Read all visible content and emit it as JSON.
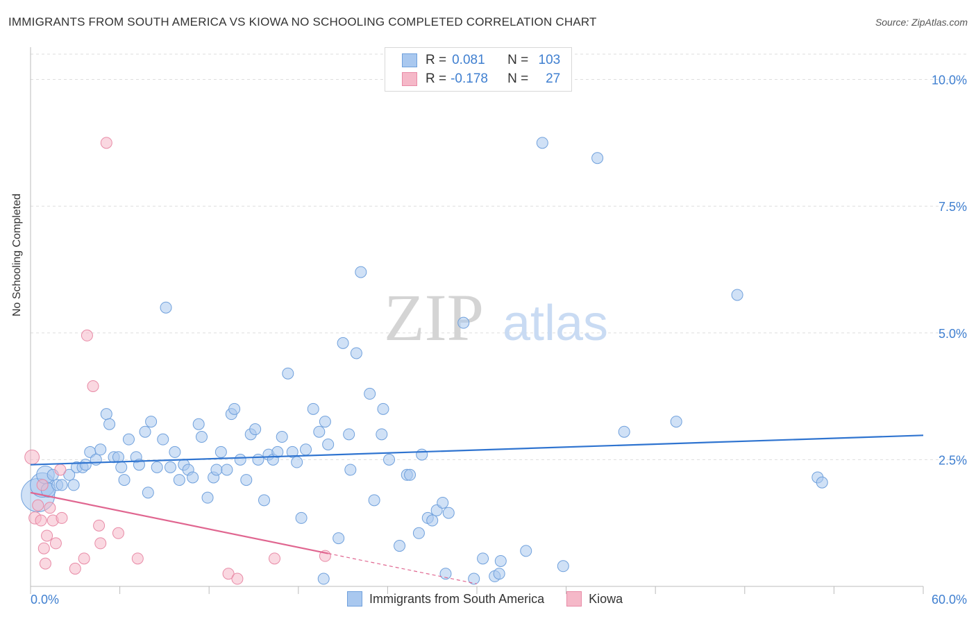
{
  "header": {
    "title": "IMMIGRANTS FROM SOUTH AMERICA VS KIOWA NO SCHOOLING COMPLETED CORRELATION CHART",
    "source": "Source: ZipAtlas.com"
  },
  "watermark": {
    "zip": "ZIP",
    "atlas": "atlas"
  },
  "legend_top": {
    "rows": [
      {
        "r_label": "R =",
        "r_value": "0.081",
        "n_label": "N =",
        "n_value": "103",
        "color": "#a9c8ef"
      },
      {
        "r_label": "R =",
        "r_value": "-0.178",
        "n_label": "N =",
        "n_value": "27",
        "color": "#f5b8c8"
      }
    ]
  },
  "legend_bottom": {
    "items": [
      {
        "label": "Immigrants from South America",
        "color": "#a9c8ef"
      },
      {
        "label": "Kiowa",
        "color": "#f5b8c8"
      }
    ]
  },
  "chart_data": {
    "type": "scatter",
    "title": "IMMIGRANTS FROM SOUTH AMERICA VS KIOWA NO SCHOOLING COMPLETED CORRELATION CHART",
    "xlabel": "",
    "ylabel": "No Schooling Completed",
    "xlim": [
      0,
      60
    ],
    "ylim": [
      0,
      10.5
    ],
    "x_tick_labels": [
      {
        "value": 0,
        "label": "0.0%"
      },
      {
        "value": 60,
        "label": "60.0%"
      }
    ],
    "y_tick_labels": [
      {
        "value": 2.5,
        "label": "2.5%"
      },
      {
        "value": 5.0,
        "label": "5.0%"
      },
      {
        "value": 7.5,
        "label": "7.5%"
      },
      {
        "value": 10.0,
        "label": "10.0%"
      }
    ],
    "grid": "horizontal dashed",
    "series": [
      {
        "name": "Immigrants from South America",
        "color": "#a9c8ef",
        "stroke": "#6fa0dc",
        "trend": {
          "x0": 0,
          "y0": 2.4,
          "x1": 60,
          "y1": 2.98,
          "color": "#2f74d0"
        },
        "points": [
          [
            0.5,
            1.8,
            3
          ],
          [
            0.8,
            2.0,
            2.2
          ],
          [
            1.0,
            2.2,
            1.6
          ],
          [
            1.2,
            1.9,
            1.3
          ],
          [
            1.5,
            2.2,
            1
          ],
          [
            1.8,
            2.0,
            1
          ],
          [
            2.1,
            2.0,
            1
          ],
          [
            2.6,
            2.2,
            1
          ],
          [
            2.9,
            2.0,
            1
          ],
          [
            3.1,
            2.35,
            1
          ],
          [
            3.5,
            2.35,
            1
          ],
          [
            3.7,
            2.4,
            1
          ],
          [
            4.0,
            2.65,
            1
          ],
          [
            4.4,
            2.5,
            1
          ],
          [
            4.7,
            2.7,
            1
          ],
          [
            5.1,
            3.4,
            1
          ],
          [
            5.3,
            3.2,
            1
          ],
          [
            5.6,
            2.55,
            1
          ],
          [
            5.9,
            2.55,
            1
          ],
          [
            6.1,
            2.35,
            1
          ],
          [
            6.3,
            2.1,
            1
          ],
          [
            6.6,
            2.9,
            1
          ],
          [
            7.1,
            2.55,
            1
          ],
          [
            7.3,
            2.4,
            1
          ],
          [
            7.7,
            3.05,
            1
          ],
          [
            7.9,
            1.85,
            1
          ],
          [
            8.1,
            3.25,
            1
          ],
          [
            8.5,
            2.35,
            1
          ],
          [
            8.9,
            2.9,
            1
          ],
          [
            9.1,
            5.5,
            1
          ],
          [
            9.4,
            2.35,
            1
          ],
          [
            9.7,
            2.65,
            1
          ],
          [
            10.0,
            2.1,
            1
          ],
          [
            10.3,
            2.4,
            1
          ],
          [
            10.6,
            2.3,
            1
          ],
          [
            10.9,
            2.15,
            1
          ],
          [
            11.3,
            3.2,
            1
          ],
          [
            11.5,
            2.95,
            1
          ],
          [
            11.9,
            1.75,
            1
          ],
          [
            12.3,
            2.15,
            1
          ],
          [
            12.5,
            2.3,
            1
          ],
          [
            12.8,
            2.65,
            1
          ],
          [
            13.2,
            2.3,
            1
          ],
          [
            13.5,
            3.4,
            1
          ],
          [
            13.7,
            3.5,
            1
          ],
          [
            14.1,
            2.5,
            1
          ],
          [
            14.5,
            2.1,
            1
          ],
          [
            14.8,
            3.0,
            1
          ],
          [
            15.1,
            3.1,
            1
          ],
          [
            15.3,
            2.5,
            1
          ],
          [
            15.7,
            1.7,
            1
          ],
          [
            16.0,
            2.6,
            1
          ],
          [
            16.3,
            2.5,
            1
          ],
          [
            16.6,
            2.65,
            1
          ],
          [
            16.9,
            2.95,
            1
          ],
          [
            17.3,
            4.2,
            1
          ],
          [
            17.6,
            2.65,
            1
          ],
          [
            17.9,
            2.45,
            1
          ],
          [
            18.2,
            1.35,
            1
          ],
          [
            18.5,
            2.7,
            1
          ],
          [
            19.0,
            3.5,
            1
          ],
          [
            19.4,
            3.05,
            1
          ],
          [
            19.8,
            3.25,
            1
          ],
          [
            20.0,
            2.8,
            1
          ],
          [
            19.7,
            0.15,
            1
          ],
          [
            20.7,
            0.95,
            1
          ],
          [
            21.0,
            4.8,
            1
          ],
          [
            21.4,
            3.0,
            1
          ],
          [
            21.5,
            2.3,
            1
          ],
          [
            21.9,
            4.6,
            1
          ],
          [
            22.2,
            6.2,
            1
          ],
          [
            22.8,
            3.8,
            1
          ],
          [
            23.1,
            1.7,
            1
          ],
          [
            23.6,
            3.0,
            1
          ],
          [
            23.7,
            3.5,
            1
          ],
          [
            24.1,
            2.5,
            1
          ],
          [
            24.8,
            0.8,
            1
          ],
          [
            25.3,
            2.2,
            1
          ],
          [
            25.5,
            2.2,
            1
          ],
          [
            26.1,
            1.05,
            1
          ],
          [
            26.3,
            2.6,
            1
          ],
          [
            26.7,
            1.35,
            1
          ],
          [
            27.0,
            1.3,
            1
          ],
          [
            27.3,
            1.5,
            1
          ],
          [
            27.7,
            1.65,
            1
          ],
          [
            27.9,
            0.25,
            1
          ],
          [
            28.1,
            1.45,
            1
          ],
          [
            29.1,
            5.2,
            1
          ],
          [
            29.8,
            0.15,
            1
          ],
          [
            30.4,
            0.55,
            1
          ],
          [
            31.2,
            0.2,
            1
          ],
          [
            31.5,
            0.25,
            1
          ],
          [
            31.6,
            0.5,
            1
          ],
          [
            33.3,
            0.7,
            1
          ],
          [
            34.4,
            8.75,
            1
          ],
          [
            35.8,
            0.4,
            1
          ],
          [
            38.1,
            8.45,
            1
          ],
          [
            39.9,
            3.05,
            1
          ],
          [
            43.4,
            3.25,
            1
          ],
          [
            47.5,
            5.75,
            1
          ],
          [
            52.9,
            2.15,
            1
          ],
          [
            53.2,
            2.05,
            1
          ]
        ]
      },
      {
        "name": "Kiowa",
        "color": "#f5b8c8",
        "stroke": "#e88aa6",
        "trend": {
          "x0": 0,
          "y0": 1.85,
          "x1": 20,
          "y1": 0.65,
          "dashed_to_x": 30,
          "color": "#e06690"
        },
        "points": [
          [
            0.1,
            2.55,
            1.3
          ],
          [
            0.3,
            1.35,
            1.1
          ],
          [
            0.5,
            1.6,
            1
          ],
          [
            0.7,
            1.3,
            1
          ],
          [
            0.8,
            2.0,
            1
          ],
          [
            0.9,
            0.75,
            1
          ],
          [
            1.0,
            0.45,
            1
          ],
          [
            1.1,
            1.0,
            1
          ],
          [
            1.3,
            1.55,
            1
          ],
          [
            1.5,
            1.3,
            1
          ],
          [
            1.7,
            0.85,
            1
          ],
          [
            2.0,
            2.3,
            1
          ],
          [
            2.1,
            1.35,
            1
          ],
          [
            3.0,
            0.35,
            1
          ],
          [
            3.6,
            0.55,
            1
          ],
          [
            3.8,
            4.95,
            1
          ],
          [
            4.2,
            3.95,
            1
          ],
          [
            4.6,
            1.2,
            1
          ],
          [
            4.7,
            0.85,
            1
          ],
          [
            5.1,
            8.75,
            1
          ],
          [
            5.9,
            1.05,
            1
          ],
          [
            7.2,
            0.55,
            1
          ],
          [
            13.3,
            0.25,
            1
          ],
          [
            13.9,
            0.15,
            1
          ],
          [
            16.4,
            0.55,
            1
          ],
          [
            19.8,
            0.6,
            1
          ]
        ]
      }
    ]
  }
}
